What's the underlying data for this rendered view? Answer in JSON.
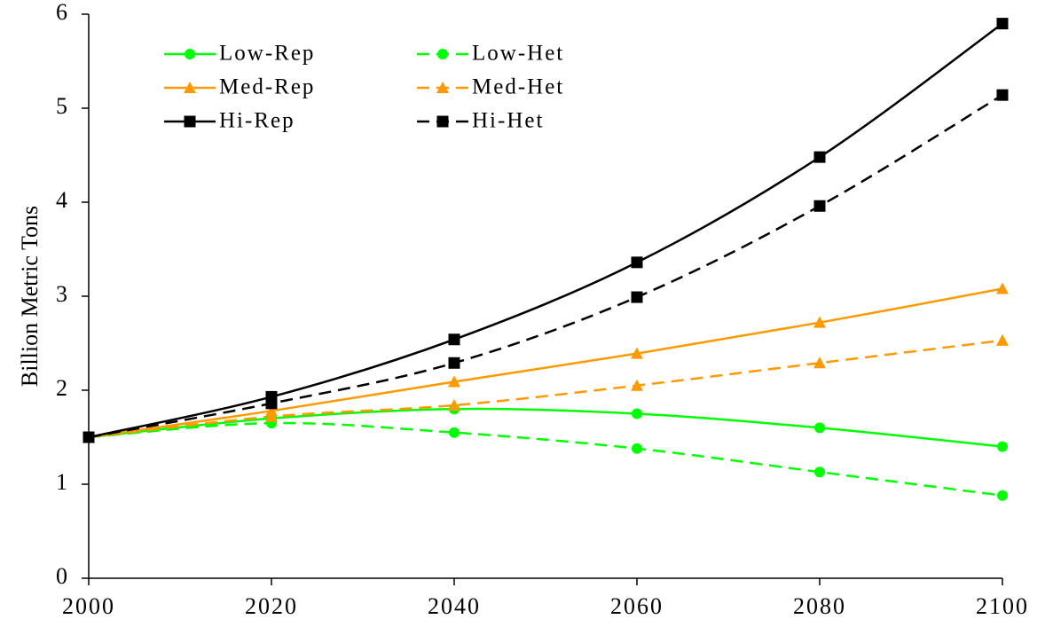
{
  "chart_data": {
    "type": "line",
    "y_label": "Billion Metric Tons",
    "x": [
      2000,
      2020,
      2040,
      2060,
      2080,
      2100
    ],
    "xlim": [
      2000,
      2100
    ],
    "xticks": [
      2000,
      2020,
      2040,
      2060,
      2080,
      2100
    ],
    "ylim": [
      0,
      6
    ],
    "yticks": [
      0,
      1,
      2,
      3,
      4,
      5,
      6
    ],
    "smooth": true,
    "series": [
      {
        "name": "Low-Rep",
        "color": "#00ff00",
        "marker": "circle",
        "dashed": false,
        "values": [
          1.5,
          1.7,
          1.8,
          1.75,
          1.6,
          1.4
        ]
      },
      {
        "name": "Low-Het",
        "color": "#00ff00",
        "marker": "circle",
        "dashed": true,
        "values": [
          1.5,
          1.65,
          1.55,
          1.38,
          1.13,
          0.88
        ]
      },
      {
        "name": "Med-Rep",
        "color": "#ff9900",
        "marker": "triangle",
        "dashed": false,
        "values": [
          1.5,
          1.78,
          2.09,
          2.39,
          2.72,
          3.08
        ]
      },
      {
        "name": "Med-Het",
        "color": "#ff9900",
        "marker": "triangle",
        "dashed": true,
        "values": [
          1.5,
          1.72,
          1.84,
          2.05,
          2.29,
          2.53
        ]
      },
      {
        "name": "Hi-Rep",
        "color": "#000000",
        "marker": "square",
        "dashed": false,
        "values": [
          1.5,
          1.93,
          2.54,
          3.36,
          4.48,
          5.9
        ]
      },
      {
        "name": "Hi-Het",
        "color": "#000000",
        "marker": "square",
        "dashed": true,
        "values": [
          1.5,
          1.86,
          2.29,
          2.99,
          3.96,
          5.14
        ]
      }
    ]
  }
}
